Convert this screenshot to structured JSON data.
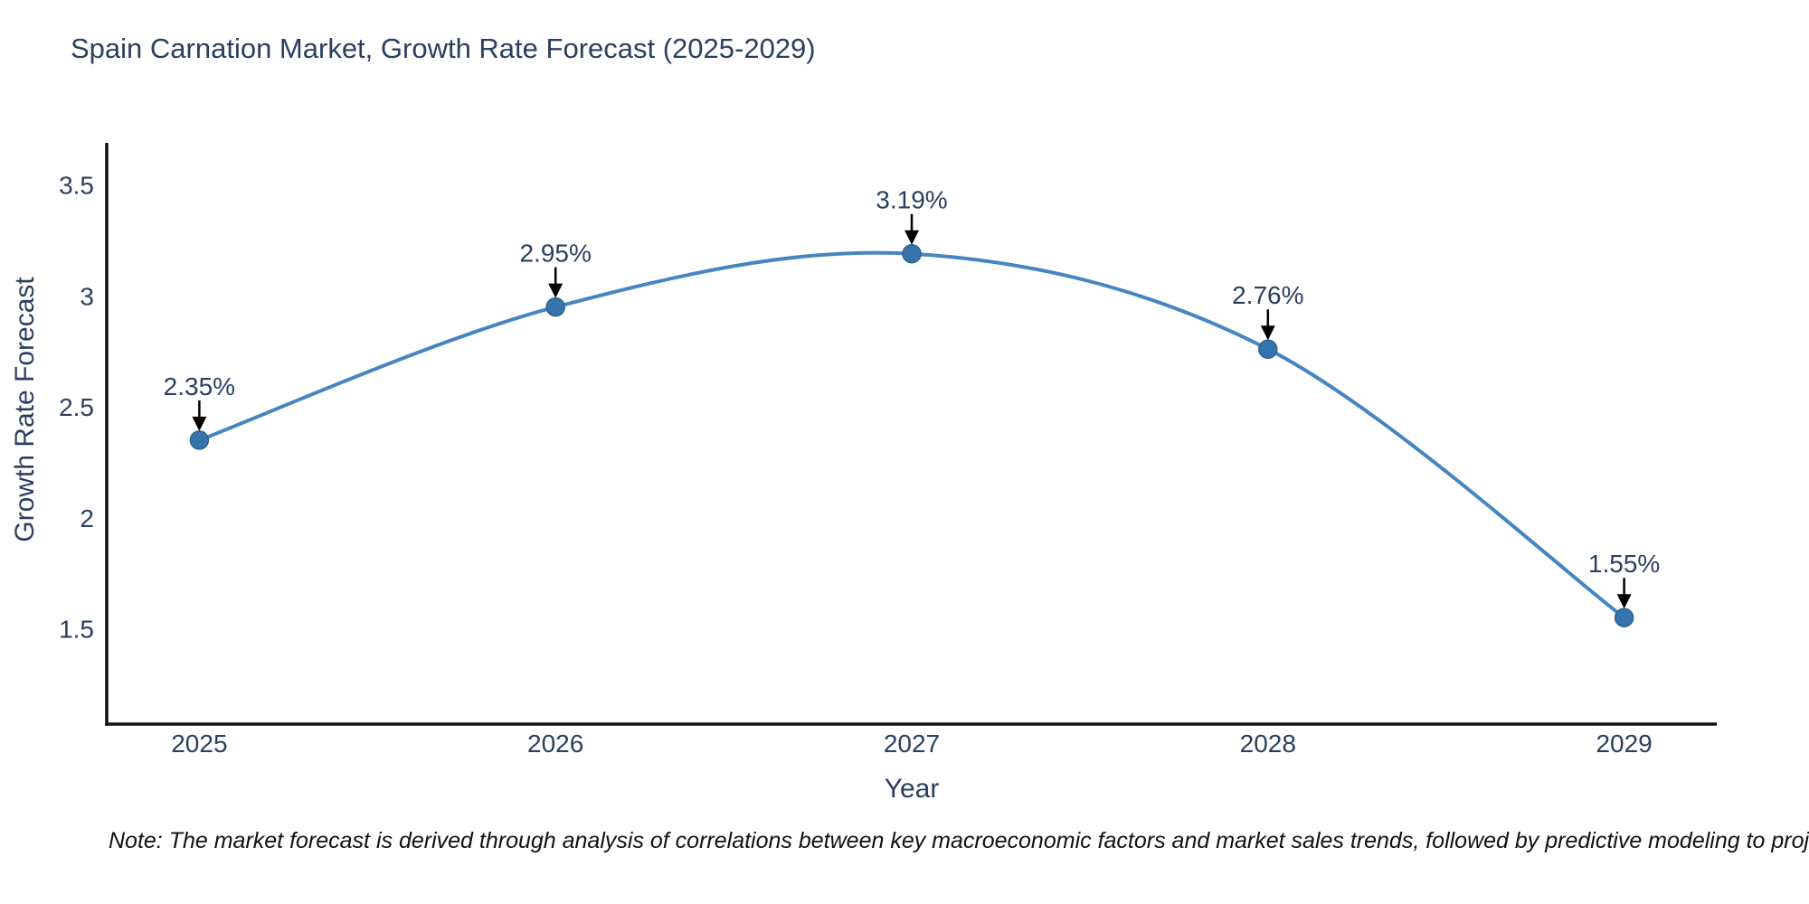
{
  "note": "Note: The market forecast is derived through analysis of correlations between key macroeconomic factors and market sales trends, followed by predictive modeling to project future sales",
  "chart_data": {
    "type": "line",
    "title": "Spain Carnation Market, Growth Rate Forecast (2025-2029)",
    "xlabel": "Year",
    "ylabel": "Growth Rate Forecast",
    "x": [
      2025,
      2026,
      2027,
      2028,
      2029
    ],
    "y": [
      2.35,
      2.95,
      3.19,
      2.76,
      1.55
    ],
    "point_labels": [
      "2.35%",
      "2.95%",
      "3.19%",
      "2.76%",
      "1.55%"
    ],
    "xtick_labels": [
      "2025",
      "2026",
      "2027",
      "2028",
      "2029"
    ],
    "ytick_values": [
      3.5,
      3,
      2.5,
      2,
      1.5
    ],
    "ytick_labels": [
      "3.5",
      "3",
      "2.5",
      "2",
      "1.5"
    ],
    "xlim": [
      2024.74,
      2029.26
    ],
    "ylim": [
      1.07,
      3.69
    ],
    "line_shape": "spline",
    "grid": false,
    "legend": "none",
    "colors": {
      "line": "#4685c2",
      "marker_fill": "#3674ae",
      "marker_edge": "#2d628f",
      "axis_line": "#111111",
      "tick_text": "#2a3f5f",
      "annotation_text": "#2a3f5f",
      "annotation_arrow": "#000000",
      "note_text": "#111111",
      "background": "#ffffff"
    }
  }
}
